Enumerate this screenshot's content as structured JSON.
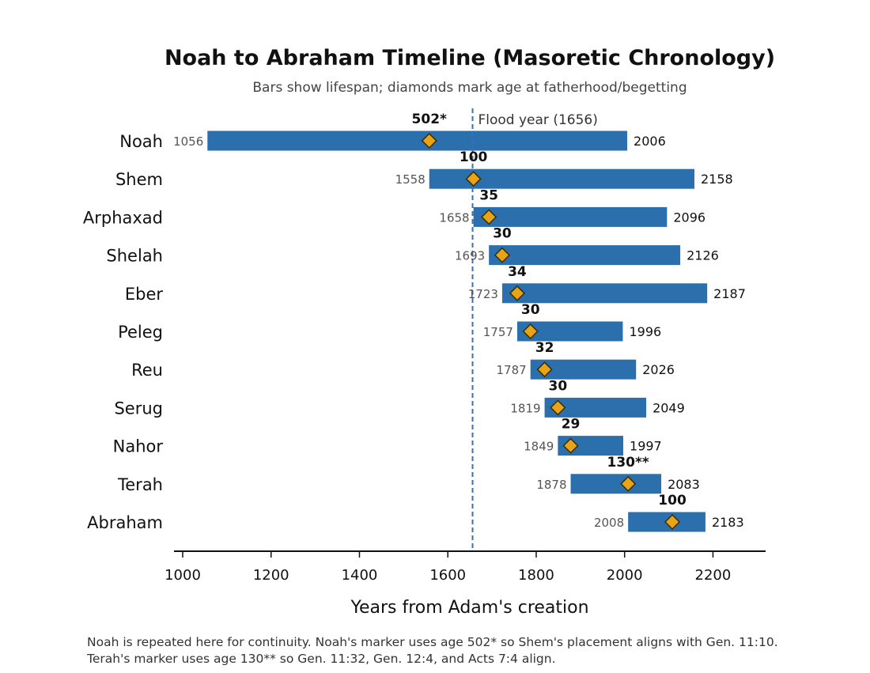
{
  "chart_data": {
    "type": "timeline",
    "title": "Noah to Abraham Timeline (Masoretic Chronology)",
    "subtitle": "Bars show lifespan; diamonds mark age at fatherhood/begetting",
    "xlabel": "Years from Adam's creation",
    "xlim": [
      980,
      2320
    ],
    "xticks": [
      1000,
      1200,
      1400,
      1600,
      1800,
      2000,
      2200
    ],
    "flood_line": {
      "year": 1656,
      "label": "Flood year (1656)"
    },
    "series": [
      {
        "name": "Noah",
        "birth": 1056,
        "death": 2006,
        "begetting_year": 1558,
        "age_label": "502*"
      },
      {
        "name": "Shem",
        "birth": 1558,
        "death": 2158,
        "begetting_year": 1658,
        "age_label": "100"
      },
      {
        "name": "Arphaxad",
        "birth": 1658,
        "death": 2096,
        "begetting_year": 1693,
        "age_label": "35"
      },
      {
        "name": "Shelah",
        "birth": 1693,
        "death": 2126,
        "begetting_year": 1723,
        "age_label": "30"
      },
      {
        "name": "Eber",
        "birth": 1723,
        "death": 2187,
        "begetting_year": 1757,
        "age_label": "34"
      },
      {
        "name": "Peleg",
        "birth": 1757,
        "death": 1996,
        "begetting_year": 1787,
        "age_label": "30"
      },
      {
        "name": "Reu",
        "birth": 1787,
        "death": 2026,
        "begetting_year": 1819,
        "age_label": "32"
      },
      {
        "name": "Serug",
        "birth": 1819,
        "death": 2049,
        "begetting_year": 1849,
        "age_label": "30"
      },
      {
        "name": "Nahor",
        "birth": 1849,
        "death": 1997,
        "begetting_year": 1878,
        "age_label": "29"
      },
      {
        "name": "Terah",
        "birth": 1878,
        "death": 2083,
        "begetting_year": 2008,
        "age_label": "130**"
      },
      {
        "name": "Abraham",
        "birth": 2008,
        "death": 2183,
        "begetting_year": 2108,
        "age_label": "100"
      }
    ],
    "colors": {
      "bar": "#2c6fad",
      "marker_fill": "#e8a317",
      "marker_stroke": "#3a2c05",
      "flood_line": "#3a6fc0"
    },
    "grid": false
  },
  "footnotes": [
    "Noah is repeated here for continuity. Noah's marker uses age 502* so Shem's placement aligns with Gen. 11:10.",
    "Terah's marker uses age 130** so Gen. 11:32, Gen. 12:4, and Acts 7:4 align."
  ]
}
